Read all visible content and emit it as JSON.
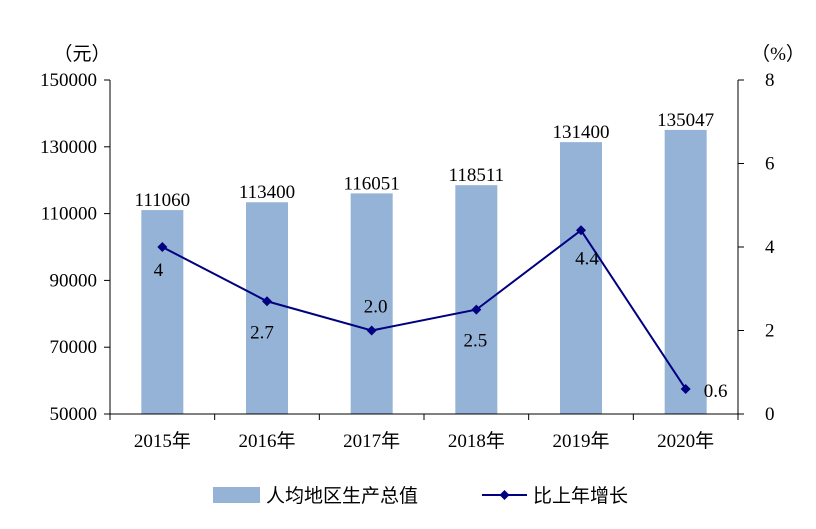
{
  "chart_data": {
    "type": "bar",
    "categories": [
      "2015年",
      "2016年",
      "2017年",
      "2018年",
      "2019年",
      "2020年"
    ],
    "series": [
      {
        "name": "人均地区生产总值",
        "type": "bar",
        "axis": "left",
        "values": [
          111060,
          113400,
          116051,
          118511,
          131400,
          135047
        ],
        "labels": [
          "111060",
          "113400",
          "116051",
          "118511",
          "131400",
          "135047"
        ],
        "color": "#95B3D7"
      },
      {
        "name": "比上年增长",
        "type": "line",
        "axis": "right",
        "values": [
          4.0,
          2.7,
          2.0,
          2.5,
          4.4,
          0.6
        ],
        "labels": [
          "4",
          "2.7",
          "2.0",
          "2.5",
          "4.4",
          "0.6"
        ],
        "color": "#000080"
      }
    ],
    "y_left": {
      "unit_label": "（元）",
      "ylim": [
        50000,
        150000
      ],
      "ticks": [
        "50000",
        "70000",
        "90000",
        "110000",
        "130000",
        "150000"
      ]
    },
    "y_right": {
      "unit_label": "（%）",
      "ylim": [
        0,
        8
      ],
      "ticks": [
        "0",
        "2",
        "4",
        "6",
        "8"
      ]
    },
    "grid": false,
    "legend_position": "bottom"
  }
}
